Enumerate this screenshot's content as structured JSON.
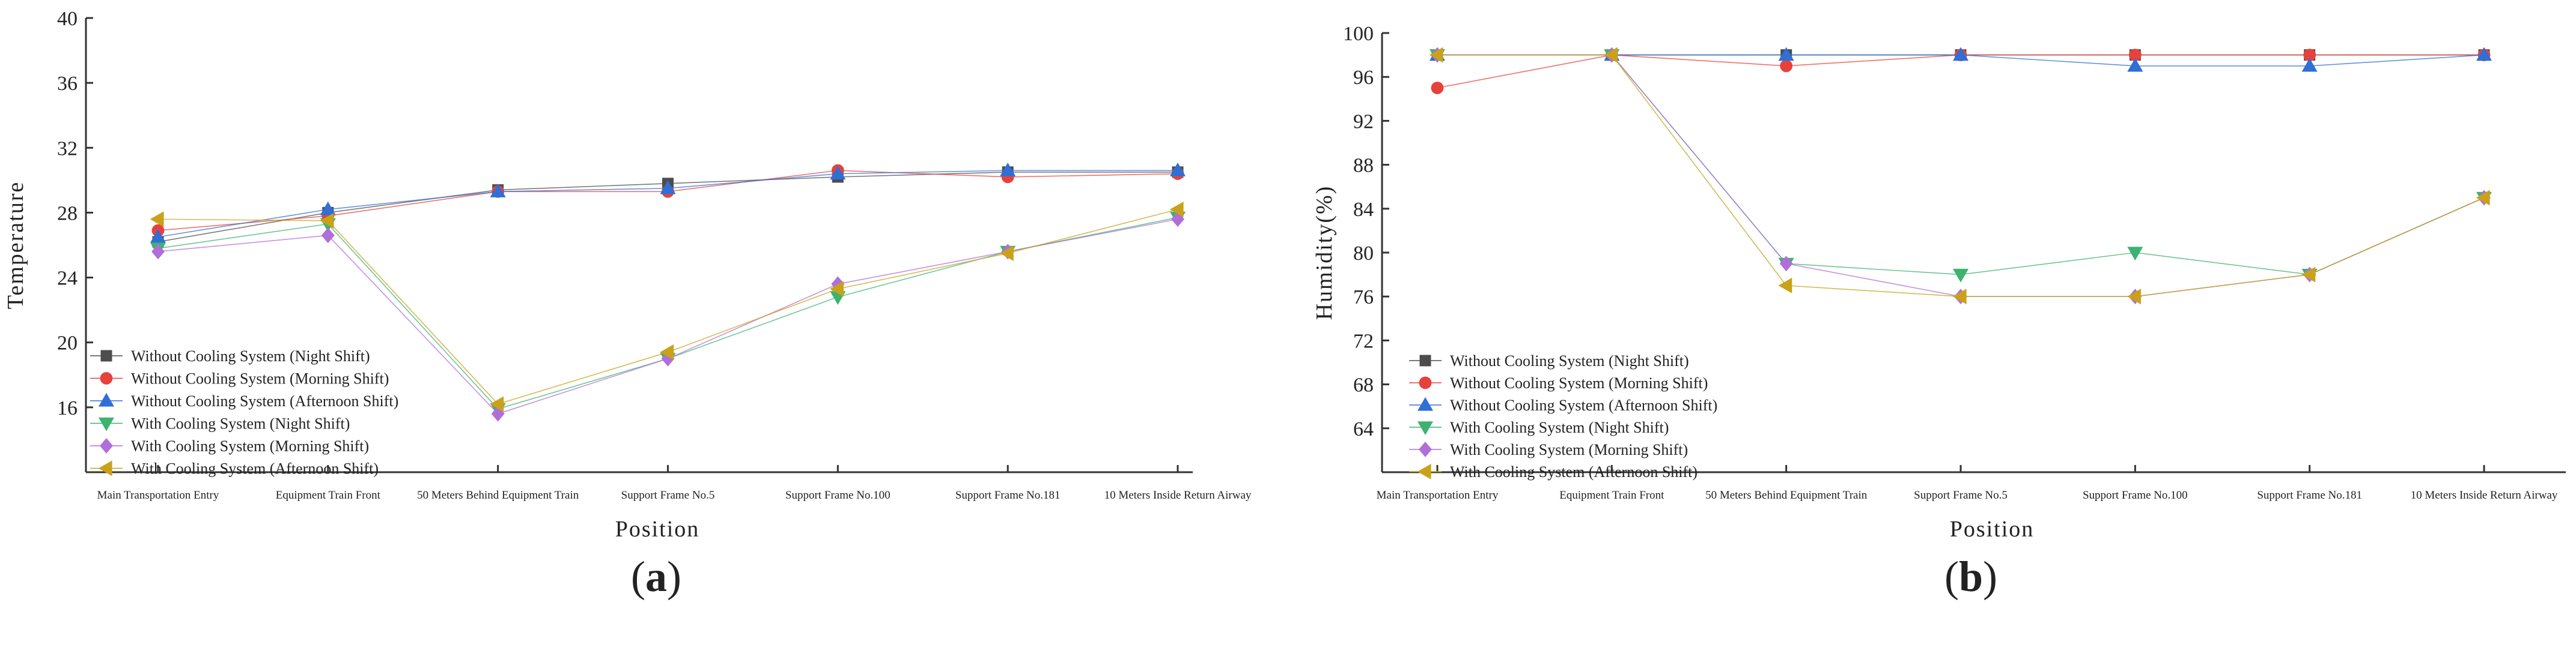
{
  "legend": [
    {
      "name": "Without Cooling System (Night Shift)",
      "color": "#4d4d4d",
      "marker": "square"
    },
    {
      "name": "Without Cooling System (Morning Shift)",
      "color": "#e8413c",
      "marker": "circle"
    },
    {
      "name": "Without Cooling System (Afternoon Shift)",
      "color": "#2f6fd6",
      "marker": "triangle-up"
    },
    {
      "name": "With Cooling System (Night Shift)",
      "color": "#3cb371",
      "marker": "triangle-down"
    },
    {
      "name": "With Cooling System (Morning Shift)",
      "color": "#b06fd8",
      "marker": "diamond"
    },
    {
      "name": "With Cooling System (Afternoon Shift)",
      "color": "#c9a21a",
      "marker": "triangle-left"
    }
  ],
  "chart_data": [
    {
      "type": "line",
      "panel_label": "a",
      "categories": [
        "Main Transportation Entry",
        "Equipment Train Front",
        "50 Meters Behind Equipment Train",
        "Support Frame No.5",
        "Support Frame No.100",
        "Support Frame No.181",
        "10 Meters Inside Return Airway"
      ],
      "xlabel": "Position",
      "ylabel": "Temperature",
      "ylim": [
        12,
        40
      ],
      "yticks": [
        16,
        20,
        24,
        28,
        32,
        36,
        40
      ],
      "grid": false,
      "legend_position": "bottom-left",
      "series": [
        {
          "name": "Without Cooling System (Night Shift)",
          "values": [
            26.2,
            28.0,
            29.4,
            29.8,
            30.2,
            30.5,
            30.5
          ]
        },
        {
          "name": "Without Cooling System (Morning Shift)",
          "values": [
            26.9,
            27.8,
            29.3,
            29.3,
            30.6,
            30.2,
            30.4
          ]
        },
        {
          "name": "Without Cooling System (Afternoon Shift)",
          "values": [
            26.5,
            28.2,
            29.3,
            29.5,
            30.4,
            30.6,
            30.6
          ]
        },
        {
          "name": "With Cooling System (Night Shift)",
          "values": [
            25.8,
            27.3,
            15.9,
            19.0,
            22.8,
            25.6,
            27.7
          ]
        },
        {
          "name": "With Cooling System (Morning Shift)",
          "values": [
            25.6,
            26.6,
            15.6,
            19.0,
            23.6,
            25.6,
            27.6
          ]
        },
        {
          "name": "With Cooling System (Afternoon Shift)",
          "values": [
            27.6,
            27.5,
            16.2,
            19.4,
            23.3,
            25.5,
            28.2
          ]
        }
      ]
    },
    {
      "type": "line",
      "panel_label": "b",
      "categories": [
        "Main Transportation Entry",
        "Equipment Train Front",
        "50 Meters Behind Equipment Train",
        "Support Frame No.5",
        "Support Frame No.100",
        "Support Frame No.181",
        "10 Meters Inside Return Airway"
      ],
      "xlabel": "Position",
      "ylabel": "Humidity(%)",
      "ylim": [
        60,
        100
      ],
      "yticks": [
        64,
        68,
        72,
        76,
        80,
        84,
        88,
        92,
        96,
        100
      ],
      "grid": false,
      "legend_position": "bottom-left",
      "series": [
        {
          "name": "Without Cooling System (Night Shift)",
          "values": [
            98,
            98,
            98,
            98,
            98,
            98,
            98
          ]
        },
        {
          "name": "Without Cooling System (Morning Shift)",
          "values": [
            95,
            98,
            97,
            98,
            98,
            98,
            98
          ]
        },
        {
          "name": "Without Cooling System (Afternoon Shift)",
          "values": [
            98,
            98,
            98,
            98,
            97,
            97,
            98
          ]
        },
        {
          "name": "With Cooling System (Night Shift)",
          "values": [
            98,
            98,
            79,
            78,
            80,
            78,
            85
          ]
        },
        {
          "name": "With Cooling System (Morning Shift)",
          "values": [
            98,
            98,
            79,
            76,
            76,
            78,
            85
          ]
        },
        {
          "name": "With Cooling System (Afternoon Shift)",
          "values": [
            98,
            98,
            77,
            76,
            76,
            78,
            85
          ]
        }
      ]
    }
  ]
}
